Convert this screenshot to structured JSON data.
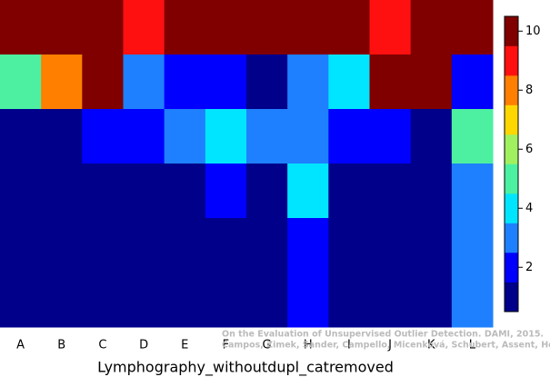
{
  "chart_data": {
    "type": "heatmap",
    "xlabel": "Lymphography_withoutdupl_catremoved",
    "categories": [
      "A",
      "B",
      "C",
      "D",
      "E",
      "F",
      "G",
      "H",
      "I",
      "J",
      "K",
      "L"
    ],
    "values": [
      [
        10,
        10,
        10,
        9,
        10,
        10,
        10,
        10,
        10,
        9,
        10,
        10
      ],
      [
        5,
        8,
        10,
        3,
        2,
        2,
        1,
        3,
        4,
        10,
        10,
        2
      ],
      [
        1,
        1,
        2,
        2,
        3,
        4,
        3,
        3,
        2,
        2,
        1,
        5
      ],
      [
        1,
        1,
        1,
        1,
        1,
        2,
        1,
        4,
        1,
        1,
        1,
        3
      ],
      [
        1,
        1,
        1,
        1,
        1,
        1,
        1,
        2,
        1,
        1,
        1,
        3
      ],
      [
        1,
        1,
        1,
        1,
        1,
        1,
        1,
        2,
        1,
        1,
        1,
        3
      ]
    ],
    "color_levels": [
      1,
      2,
      3,
      4,
      5,
      6,
      7,
      8,
      9,
      10
    ],
    "colors": [
      "#00008b",
      "#0000ff",
      "#1e80ff",
      "#00e5ff",
      "#4cf0a0",
      "#a0f060",
      "#ffd700",
      "#ff7f00",
      "#ff1010",
      "#800000"
    ],
    "zlim": [
      0.5,
      10.5
    ],
    "zticks": [
      2,
      4,
      6,
      8,
      10
    ],
    "annotations": [
      "On the Evaluation of Unsupervised Outlier Detection. DAMI, 2015.",
      "Campos, Zimek, Sander, Campello, Micenková, Schubert, Assent, Houle"
    ]
  }
}
